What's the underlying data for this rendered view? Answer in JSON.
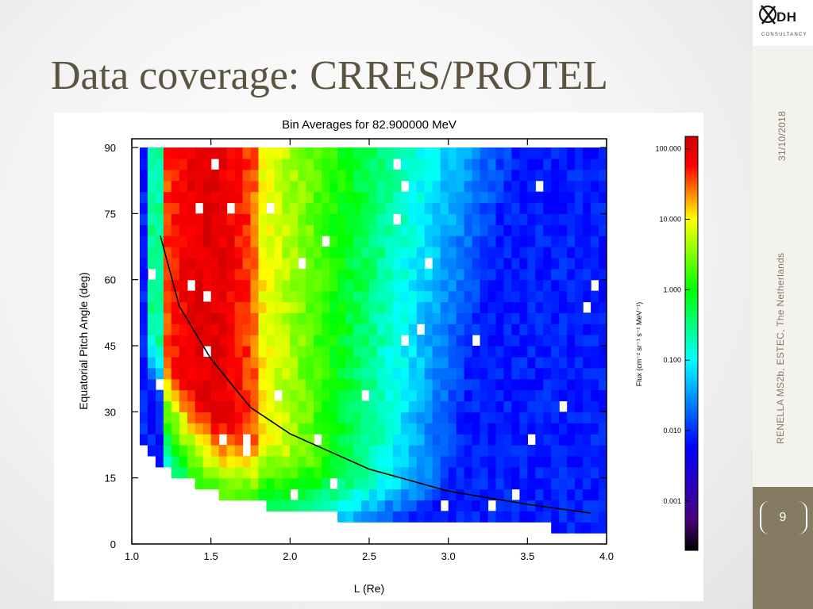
{
  "slide": {
    "title": "Data coverage: CRRES/PROTEL",
    "date": "31/10/2018",
    "venue": "RENELLA MS2b, ESTEC, The Netherlands",
    "page_number": "9",
    "logo_text": "DH",
    "logo_subtext": "CONSULTANCY",
    "sidebar_color": "#857b63",
    "title_color": "#5a5440"
  },
  "chart_data": {
    "type": "heatmap",
    "title": "Bin Averages for 82.900000 MeV",
    "xlabel": "L (Re)",
    "ylabel": "Equatorial Pitch Angle (deg)",
    "xlim": [
      1.0,
      4.0
    ],
    "ylim": [
      0,
      90
    ],
    "xticks": [
      "1.0",
      "1.5",
      "2.0",
      "2.5",
      "3.0",
      "3.5",
      "4.0"
    ],
    "yticks": [
      "0",
      "15",
      "30",
      "45",
      "60",
      "75",
      "90"
    ],
    "colorbar": {
      "label": "Flux (cm⁻² sr⁻¹ s⁻¹ MeV⁻¹)",
      "scale": "log",
      "ticks": [
        "100.000",
        "10.000",
        "1.000",
        "0.100",
        "0.010",
        "0.001"
      ],
      "range": [
        0.0002,
        150
      ],
      "colormap": [
        "#000000",
        "#4b0082",
        "#0000ff",
        "#00ffff",
        "#00ff00",
        "#ffff00",
        "#ff0000"
      ]
    },
    "data_extent": {
      "l_min": 1.05,
      "l_max": 3.95,
      "pa_max": 90
    },
    "peak_flux_region": {
      "l_range": [
        1.25,
        1.75
      ],
      "pa_range": [
        35,
        90
      ],
      "flux": 100
    },
    "loss_cone_curve": {
      "description_visible": false,
      "x": [
        1.18,
        1.3,
        1.5,
        1.75,
        2.0,
        2.5,
        3.0,
        3.5,
        3.9
      ],
      "y": [
        70,
        54,
        42,
        31,
        25,
        17,
        12,
        9,
        7
      ]
    }
  }
}
